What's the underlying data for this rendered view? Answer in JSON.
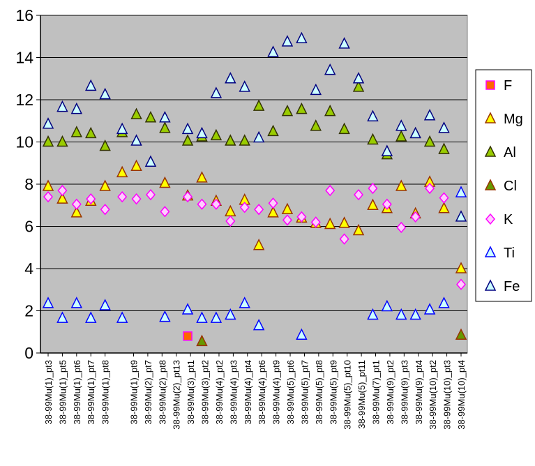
{
  "chart_data": {
    "type": "scatter",
    "title": "",
    "xlabel": "",
    "ylabel": "",
    "ylim": [
      0,
      16
    ],
    "yticks": [
      0,
      2,
      4,
      6,
      8,
      10,
      12,
      14,
      16
    ],
    "grid": "horizontal",
    "legend_position": "right",
    "plot_background": "#c0c0c0",
    "categories": [
      "38-99Mu(1)_pt3",
      "38-99Mu(1)_pt5",
      "38-99Mu(1)_pt6",
      "38-99Mu(1)_pt7",
      "38-99Mu(1)_pt8",
      "38-99Mu(1)_pt9",
      "38-99Mu(2)_pt7",
      "38-99Mu(2)_pt8",
      "38-99Mu(2)_pt13",
      "38-99Mu(3)_pt1",
      "38-99Mu(3)_pt2",
      "38-99Mu(4)_pt2",
      "38-99Mu(4)_pt3",
      "38-99Mu(4)_pt4",
      "38-99Mu(4)_pt6",
      "38-99Mu(4)_pt9",
      "38-99Mu(5)_pt6",
      "38-99Mu(5)_pt7",
      "38-99Mu(5)_pt8",
      "38-99Mu(5)_pt9",
      "38-99Mu(5)_pt10",
      "38-99Mu(5)_pt11",
      "38-99Mu(7)_pt1",
      "38-99Mu(9)_pt2",
      "38-99Mu(9)_pt3",
      "38-99Mu(9)_pt4",
      "38-99Mu(10)_pt2",
      "38-99Mu(10)_pt3",
      "38-99Mu(10)_pt4"
    ],
    "x_positions": [
      0,
      1,
      2,
      3,
      4,
      6,
      7,
      8,
      9,
      10,
      11,
      12,
      13,
      14,
      15,
      16,
      17,
      18,
      19,
      20,
      21,
      22,
      23,
      24,
      25,
      26,
      27,
      28,
      29
    ],
    "x_max": 29,
    "series": [
      {
        "name": "F",
        "marker": "square",
        "fill": "#ff6600",
        "stroke": "#ff00ff",
        "points": [
          [
            9.8,
            0.8
          ]
        ]
      },
      {
        "name": "Mg",
        "marker": "triangle",
        "fill": "#ffff00",
        "stroke": "#993300",
        "points": [
          [
            0,
            7.9
          ],
          [
            1,
            7.3
          ],
          [
            2,
            6.65
          ],
          [
            3,
            7.2
          ],
          [
            4,
            7.9
          ],
          [
            5.2,
            8.55
          ],
          [
            6.2,
            8.85
          ],
          [
            8.2,
            8.05
          ],
          [
            9.8,
            7.45
          ],
          [
            10.8,
            8.3
          ],
          [
            11.8,
            7.2
          ],
          [
            12.8,
            6.7
          ],
          [
            13.8,
            7.25
          ],
          [
            14.8,
            5.1
          ],
          [
            15.8,
            6.65
          ],
          [
            16.8,
            6.8
          ],
          [
            17.8,
            6.4
          ],
          [
            18.8,
            6.15
          ],
          [
            19.8,
            6.1
          ],
          [
            20.8,
            6.15
          ],
          [
            21.8,
            5.8
          ],
          [
            22.8,
            7.0
          ],
          [
            23.8,
            6.85
          ],
          [
            24.8,
            7.9
          ],
          [
            25.8,
            6.6
          ],
          [
            26.8,
            8.1
          ],
          [
            27.8,
            6.85
          ],
          [
            29,
            4.0
          ]
        ]
      },
      {
        "name": "Al",
        "marker": "triangle",
        "fill": "#99cc00",
        "stroke": "#333300",
        "points": [
          [
            0,
            10.0
          ],
          [
            1,
            10.0
          ],
          [
            2,
            10.45
          ],
          [
            3,
            10.4
          ],
          [
            4,
            9.8
          ],
          [
            5.2,
            10.45
          ],
          [
            6.2,
            11.3
          ],
          [
            7.2,
            11.15
          ],
          [
            8.2,
            10.65
          ],
          [
            9.8,
            10.05
          ],
          [
            10.8,
            10.25
          ],
          [
            11.8,
            10.3
          ],
          [
            12.8,
            10.05
          ],
          [
            13.8,
            10.05
          ],
          [
            14.8,
            11.7
          ],
          [
            15.8,
            10.5
          ],
          [
            16.8,
            11.45
          ],
          [
            17.8,
            11.55
          ],
          [
            18.8,
            10.75
          ],
          [
            19.8,
            11.45
          ],
          [
            20.8,
            10.6
          ],
          [
            21.8,
            12.6
          ],
          [
            22.8,
            10.1
          ],
          [
            23.8,
            9.4
          ],
          [
            24.8,
            10.25
          ],
          [
            25.8,
            10.4
          ],
          [
            26.8,
            10.0
          ],
          [
            27.8,
            9.65
          ]
        ]
      },
      {
        "name": "Cl",
        "marker": "triangle",
        "fill": "#669900",
        "stroke": "#993300",
        "points": [
          [
            10.8,
            0.55
          ],
          [
            29,
            0.85
          ]
        ]
      },
      {
        "name": "K",
        "marker": "diamond",
        "fill": "#ffccff",
        "stroke": "#ff00ff",
        "points": [
          [
            0,
            7.4
          ],
          [
            1,
            7.7
          ],
          [
            2,
            7.05
          ],
          [
            3,
            7.3
          ],
          [
            4,
            6.8
          ],
          [
            5.2,
            7.4
          ],
          [
            6.2,
            7.3
          ],
          [
            7.2,
            7.5
          ],
          [
            8.2,
            6.7
          ],
          [
            9.8,
            7.4
          ],
          [
            10.8,
            7.05
          ],
          [
            11.8,
            7.05
          ],
          [
            12.8,
            6.25
          ],
          [
            13.8,
            6.9
          ],
          [
            14.8,
            6.8
          ],
          [
            15.8,
            7.1
          ],
          [
            16.8,
            6.3
          ],
          [
            17.8,
            6.45
          ],
          [
            18.8,
            6.2
          ],
          [
            19.8,
            7.7
          ],
          [
            20.8,
            5.4
          ],
          [
            21.8,
            7.5
          ],
          [
            22.8,
            7.8
          ],
          [
            23.8,
            7.05
          ],
          [
            24.8,
            5.95
          ],
          [
            25.8,
            6.45
          ],
          [
            26.8,
            7.8
          ],
          [
            27.8,
            7.35
          ],
          [
            29,
            3.25
          ]
        ]
      },
      {
        "name": "Ti",
        "marker": "triangle",
        "fill": "#ccffff",
        "stroke": "#0000ff",
        "points": [
          [
            0,
            2.35
          ],
          [
            1,
            1.65
          ],
          [
            2,
            2.35
          ],
          [
            3,
            1.65
          ],
          [
            4,
            2.25
          ],
          [
            5.2,
            1.65
          ],
          [
            8.2,
            1.7
          ],
          [
            9.8,
            2.05
          ],
          [
            10.8,
            1.65
          ],
          [
            11.8,
            1.65
          ],
          [
            12.8,
            1.8
          ],
          [
            13.8,
            2.35
          ],
          [
            14.8,
            1.3
          ],
          [
            17.8,
            0.85
          ],
          [
            22.8,
            1.8
          ],
          [
            23.8,
            2.2
          ],
          [
            24.8,
            1.8
          ],
          [
            25.8,
            1.8
          ],
          [
            26.8,
            2.05
          ],
          [
            27.8,
            2.35
          ],
          [
            29,
            7.6
          ]
        ]
      },
      {
        "name": "Fe",
        "marker": "triangle",
        "fill": "#ccffff",
        "stroke": "#000080",
        "points": [
          [
            0,
            10.85
          ],
          [
            1,
            11.65
          ],
          [
            2,
            11.55
          ],
          [
            3,
            12.65
          ],
          [
            4,
            12.25
          ],
          [
            5.2,
            10.6
          ],
          [
            6.2,
            10.05
          ],
          [
            7.2,
            9.05
          ],
          [
            8.2,
            11.15
          ],
          [
            9.8,
            10.6
          ],
          [
            10.8,
            10.4
          ],
          [
            11.8,
            12.3
          ],
          [
            12.8,
            13.0
          ],
          [
            13.8,
            12.6
          ],
          [
            14.8,
            10.2
          ],
          [
            15.8,
            14.25
          ],
          [
            16.8,
            14.75
          ],
          [
            17.8,
            14.9
          ],
          [
            18.8,
            12.45
          ],
          [
            19.8,
            13.4
          ],
          [
            20.8,
            14.65
          ],
          [
            21.8,
            13.0
          ],
          [
            22.8,
            11.2
          ],
          [
            23.8,
            9.55
          ],
          [
            24.8,
            10.75
          ],
          [
            25.8,
            10.4
          ],
          [
            26.8,
            11.25
          ],
          [
            27.8,
            10.65
          ],
          [
            29,
            6.45
          ]
        ]
      }
    ]
  },
  "legend": {
    "items": [
      {
        "label": "F"
      },
      {
        "label": "Mg"
      },
      {
        "label": "Al"
      },
      {
        "label": "Cl"
      },
      {
        "label": "K"
      },
      {
        "label": "Ti"
      },
      {
        "label": "Fe"
      }
    ]
  }
}
